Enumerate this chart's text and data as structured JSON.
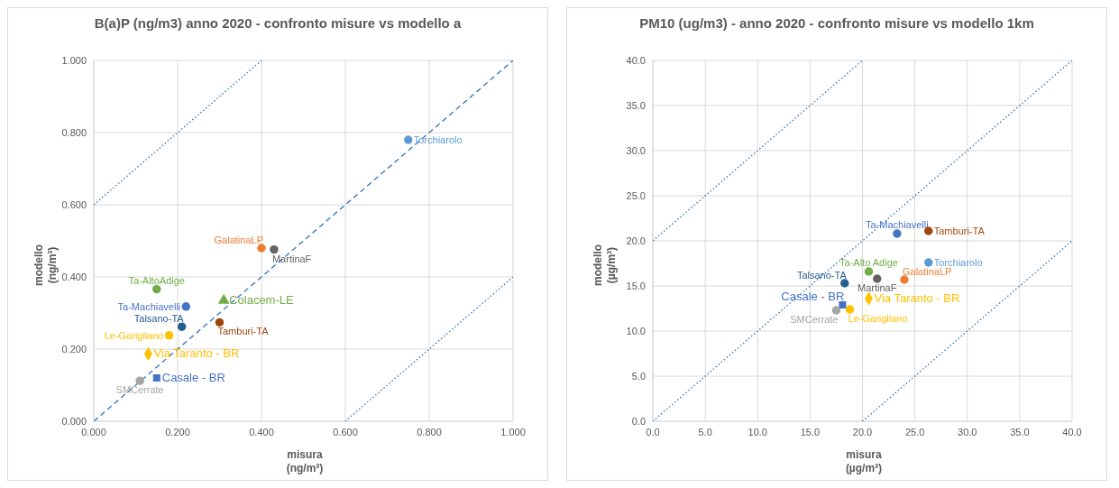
{
  "chart_data": [
    {
      "type": "scatter",
      "title": "B(a)P (ng/m3) anno 2020 - confronto misure vs modello a",
      "xlabel": "misura (ng/m³)",
      "ylabel": "modello (ng/m³)",
      "grid": true,
      "xlim": [
        0,
        1
      ],
      "ylim": [
        0,
        1
      ],
      "xticks": [
        {
          "value": 0,
          "label": "0.000"
        },
        {
          "value": 0.2,
          "label": "0.200"
        },
        {
          "value": 0.4,
          "label": "0.400"
        },
        {
          "value": 0.6,
          "label": "0.600"
        },
        {
          "value": 0.8,
          "label": "0.800"
        },
        {
          "value": 1,
          "label": "1.000"
        }
      ],
      "yticks": [
        {
          "value": 0,
          "label": "0.000"
        },
        {
          "value": 0.2,
          "label": "0.200"
        },
        {
          "value": 0.4,
          "label": "0.400"
        },
        {
          "value": 0.6,
          "label": "0.600"
        },
        {
          "value": 0.8,
          "label": "0.800"
        },
        {
          "value": 1,
          "label": "1.000"
        }
      ],
      "series": [
        {
          "type": "line",
          "color": "#2e75b6",
          "line_style": "dashed",
          "marker": "none",
          "x": [
            0,
            1
          ],
          "values": [
            0,
            1
          ]
        },
        {
          "type": "line",
          "color": "#2e75b6",
          "line_style": "dotted",
          "marker": "none",
          "x": [
            0,
            0.4
          ],
          "values": [
            0.6,
            1
          ]
        },
        {
          "type": "line",
          "color": "#2e75b6",
          "line_style": "dotted",
          "marker": "none",
          "x": [
            0.6,
            1
          ],
          "values": [
            0,
            0.4
          ]
        },
        {
          "name": "Torchiarolo",
          "color": "#5b9bd5",
          "marker": "circle",
          "x": [
            0.75
          ],
          "values": [
            0.78
          ]
        },
        {
          "name": "GalatinaLP",
          "color": "#ed7d31",
          "marker": "circle",
          "x": [
            0.4
          ],
          "values": [
            0.48
          ]
        },
        {
          "name": "MartinaF",
          "color": "#636363",
          "marker": "circle",
          "x": [
            0.43
          ],
          "values": [
            0.476
          ]
        },
        {
          "name": "Ta-AltoAdige",
          "color": "#70ad47",
          "marker": "circle",
          "x": [
            0.15
          ],
          "values": [
            0.366
          ]
        },
        {
          "name": "Colacem-LE",
          "color": "#70ad47",
          "marker": "triangle",
          "x": [
            0.31
          ],
          "values": [
            0.335
          ]
        },
        {
          "name": "Ta-Machiavelli",
          "color": "#4472c4",
          "marker": "circle",
          "x": [
            0.22
          ],
          "values": [
            0.318
          ]
        },
        {
          "name": "Tamburi-TA",
          "color": "#9e480e",
          "marker": "circle",
          "x": [
            0.3
          ],
          "values": [
            0.274
          ]
        },
        {
          "name": "Talsano-TA",
          "color": "#255e91",
          "marker": "circle",
          "x": [
            0.21
          ],
          "values": [
            0.262
          ]
        },
        {
          "name": "Le-Garigliano",
          "color": "#ffc000",
          "marker": "circle",
          "x": [
            0.18
          ],
          "values": [
            0.238
          ]
        },
        {
          "name": "Via Taranto - BR",
          "color": "#ffc000",
          "marker": "diamond",
          "x": [
            0.13
          ],
          "values": [
            0.187
          ]
        },
        {
          "name": "Casale - BR",
          "color": "#4472c4",
          "marker": "square",
          "x": [
            0.15
          ],
          "values": [
            0.12
          ]
        },
        {
          "name": "SMCerrate",
          "color": "#a5a5a5",
          "marker": "circle",
          "x": [
            0.11
          ],
          "values": [
            0.112
          ]
        }
      ]
    },
    {
      "type": "scatter",
      "title": "PM10 (ug/m3) - anno 2020 - confronto misure vs modello 1km",
      "xlabel": "misura (µg/m³)",
      "ylabel": "modello (µg/m³)",
      "grid": true,
      "xlim": [
        0,
        40
      ],
      "ylim": [
        0,
        40
      ],
      "xticks": [
        {
          "value": 0,
          "label": "0.0"
        },
        {
          "value": 5,
          "label": "5.0"
        },
        {
          "value": 10,
          "label": "10.0"
        },
        {
          "value": 15,
          "label": "15.0"
        },
        {
          "value": 20,
          "label": "20.0"
        },
        {
          "value": 25,
          "label": "25.0"
        },
        {
          "value": 30,
          "label": "30.0"
        },
        {
          "value": 35,
          "label": "35.0"
        },
        {
          "value": 40,
          "label": "40.0"
        }
      ],
      "yticks": [
        {
          "value": 0,
          "label": "0.0"
        },
        {
          "value": 5,
          "label": "5.0"
        },
        {
          "value": 10,
          "label": "10.0"
        },
        {
          "value": 15,
          "label": "15.0"
        },
        {
          "value": 20,
          "label": "20.0"
        },
        {
          "value": 25,
          "label": "25.0"
        },
        {
          "value": 30,
          "label": "30.0"
        },
        {
          "value": 35,
          "label": "35.0"
        },
        {
          "value": 40,
          "label": "40.0"
        }
      ],
      "series": [
        {
          "type": "line",
          "color": "#2e75b6",
          "line_style": "dotted",
          "marker": "none",
          "x": [
            0,
            40
          ],
          "values": [
            0,
            40
          ]
        },
        {
          "type": "line",
          "color": "#2e75b6",
          "line_style": "dotted",
          "marker": "none",
          "x": [
            0,
            20
          ],
          "values": [
            20,
            40
          ]
        },
        {
          "type": "line",
          "color": "#2e75b6",
          "line_style": "dotted",
          "marker": "none",
          "x": [
            20,
            40
          ],
          "values": [
            0,
            20
          ]
        },
        {
          "name": "Ta-Machiavelli",
          "color": "#4472c4",
          "marker": "circle",
          "x": [
            23.3
          ],
          "values": [
            20.8
          ]
        },
        {
          "name": "Tamburi-TA",
          "color": "#9e480e",
          "marker": "circle",
          "x": [
            26.3
          ],
          "values": [
            21.1
          ]
        },
        {
          "name": "Torchiarolo",
          "color": "#5b9bd5",
          "marker": "circle",
          "x": [
            26.3
          ],
          "values": [
            17.6
          ]
        },
        {
          "name": "Ta-Alto Adige",
          "color": "#70ad47",
          "marker": "circle",
          "x": [
            20.6
          ],
          "values": [
            16.6
          ]
        },
        {
          "name": "MartinaF",
          "color": "#636363",
          "marker": "circle",
          "x": [
            21.4
          ],
          "values": [
            15.8
          ]
        },
        {
          "name": "GalatinaLP",
          "color": "#ed7d31",
          "marker": "circle",
          "x": [
            24
          ],
          "values": [
            15.7
          ]
        },
        {
          "name": "Talsano-TA",
          "color": "#255e91",
          "marker": "circle",
          "x": [
            18.3
          ],
          "values": [
            15.3
          ]
        },
        {
          "name": "Via Taranto - BR",
          "color": "#ffc000",
          "marker": "diamond",
          "x": [
            20.6
          ],
          "values": [
            13.6
          ]
        },
        {
          "name": "Casale - BR",
          "color": "#4472c4",
          "marker": "square",
          "x": [
            18.1
          ],
          "values": [
            12.9
          ]
        },
        {
          "name": "Le-Garigliano",
          "color": "#ffc000",
          "marker": "circle",
          "x": [
            18.8
          ],
          "values": [
            12.4
          ]
        },
        {
          "name": "SMCerrate",
          "color": "#a5a5a5",
          "marker": "circle",
          "x": [
            17.5
          ],
          "values": [
            12.3
          ]
        }
      ]
    }
  ]
}
